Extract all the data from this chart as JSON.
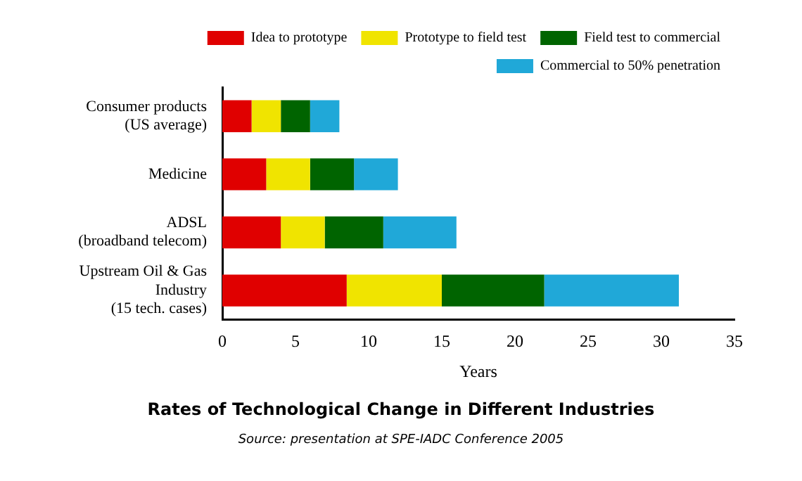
{
  "chart_data": {
    "type": "bar",
    "orientation": "horizontal",
    "stacked": true,
    "title": "Rates of Technological Change in Different Industries",
    "xlabel": "Years",
    "annotations": [
      "Source: presentation at SPE-IADC Conference 2005"
    ],
    "categories": [
      "Consumer products\n(US average)",
      "Medicine",
      "ADSL\n(broadband telecom)",
      "Upstream Oil & Gas\nIndustry\n(15 tech. cases)"
    ],
    "series": [
      {
        "name": "Idea to prototype",
        "color": "#e00000",
        "values": [
          2,
          3,
          4,
          8.5
        ]
      },
      {
        "name": "Prototype to field test",
        "color": "#f0e400",
        "values": [
          2,
          3,
          3,
          6.5
        ]
      },
      {
        "name": "Field test to commercial",
        "color": "#006400",
        "values": [
          2,
          3,
          4,
          7
        ]
      },
      {
        "name": "Commercial to 50% penetration",
        "color": "#20a8d8",
        "values": [
          2,
          3,
          5,
          9.2
        ]
      }
    ],
    "xlim": [
      0,
      35
    ],
    "xticks": [
      0,
      5,
      10,
      15,
      20,
      25,
      30,
      35
    ],
    "grid": false,
    "legend": "top right"
  }
}
